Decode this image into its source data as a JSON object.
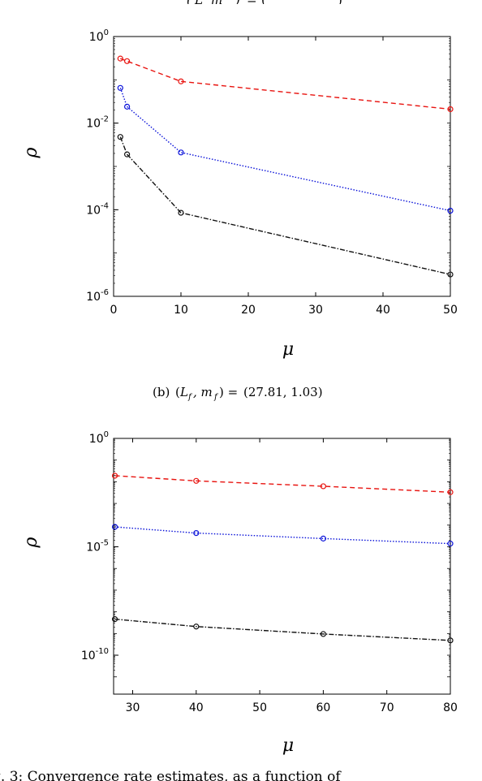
{
  "top_caption_partial": "(L_f, m_f) = (     ,     )",
  "caption_b": {
    "label": "(b)",
    "text": "(L_f, m_f) = (27.81, 1.03)",
    "value": "(27.81, 1.03)"
  },
  "figure_caption_partial": "g. 3: Convergence rate estimates, as a function of",
  "colors": {
    "red": "#e8130f",
    "blue": "#0a12d9",
    "black": "#111111"
  },
  "chart_data": [
    {
      "type": "line",
      "xlabel": "μ",
      "ylabel": "ρ",
      "yscale": "log",
      "xlim": [
        0,
        50
      ],
      "ylim": [
        1e-06,
        1
      ],
      "xticks": [
        0,
        10,
        20,
        30,
        40,
        50
      ],
      "yticks": [
        {
          "value": 1,
          "base": "10",
          "exp": "0"
        },
        {
          "value": 0.01,
          "base": "10",
          "exp": "-2"
        },
        {
          "value": 0.0001,
          "base": "10",
          "exp": "-4"
        },
        {
          "value": 1e-06,
          "base": "10",
          "exp": "-6"
        }
      ],
      "series": [
        {
          "color": "red",
          "dash": "6,4",
          "x": [
            1,
            2,
            10,
            50
          ],
          "y": [
            0.31,
            0.27,
            0.092,
            0.021
          ]
        },
        {
          "color": "blue",
          "dash": "1.5,2",
          "x": [
            1,
            2,
            10,
            50
          ],
          "y": [
            0.065,
            0.024,
            0.0021,
            9.5e-05
          ]
        },
        {
          "color": "black",
          "dash": "6,2,1.5,2",
          "x": [
            1,
            2,
            10,
            50
          ],
          "y": [
            0.0048,
            0.0019,
            8.5e-05,
            3.2e-06
          ]
        }
      ]
    },
    {
      "type": "line",
      "xlabel": "μ",
      "ylabel": "ρ",
      "yscale": "log",
      "xlim": [
        27,
        80
      ],
      "ylim": [
        1.6e-12,
        1
      ],
      "xticks": [
        30,
        40,
        50,
        60,
        70,
        80
      ],
      "yticks": [
        {
          "value": 1,
          "base": "10",
          "exp": "0"
        },
        {
          "value": 1e-05,
          "base": "10",
          "exp": "-5"
        },
        {
          "value": 1e-10,
          "base": "10",
          "exp": "-10"
        }
      ],
      "series": [
        {
          "color": "red",
          "dash": "6,4",
          "x": [
            27.2,
            40,
            60,
            80
          ],
          "y": [
            0.019,
            0.011,
            0.0062,
            0.0033
          ]
        },
        {
          "color": "blue",
          "dash": "1.5,2",
          "x": [
            27.2,
            40,
            60,
            80
          ],
          "y": [
            8.3e-05,
            4.3e-05,
            2.4e-05,
            1.4e-05
          ]
        },
        {
          "color": "black",
          "dash": "6,2,1.5,2",
          "x": [
            27.2,
            40,
            60,
            80
          ],
          "y": [
            4.6e-09,
            2.1e-09,
            9.5e-10,
            4.8e-10
          ]
        }
      ]
    }
  ]
}
